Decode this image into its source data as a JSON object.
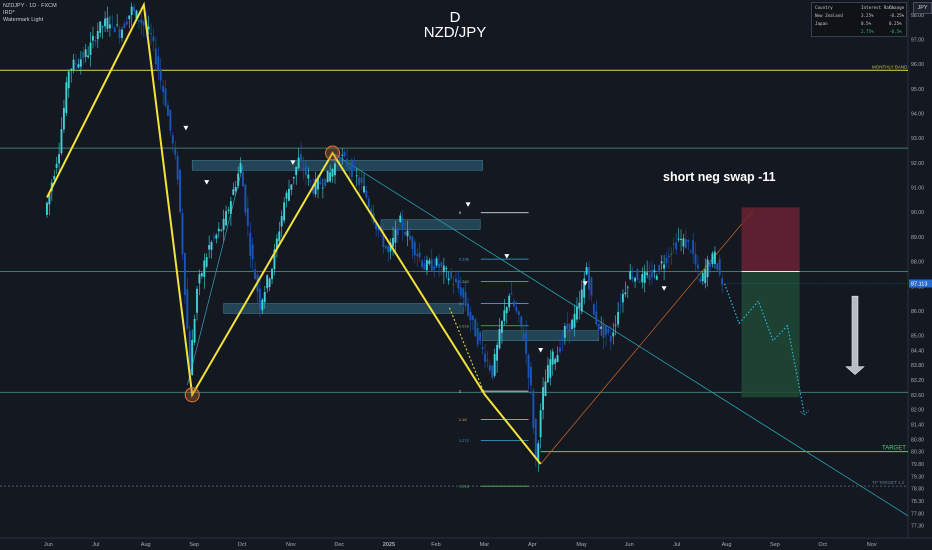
{
  "header": {
    "symbol_line": "NZDJPY · 1D · FXCM",
    "indicator": "IRD*",
    "watermark": "Watermark Light"
  },
  "title": {
    "interval": "D",
    "symbol": "NZD/JPY"
  },
  "annotation": "short neg swap -11",
  "currency_badge": "JPY",
  "rate_table": {
    "headers": [
      "Country",
      "Interest Rate",
      "Change"
    ],
    "rows": [
      [
        "New Zealand",
        "3.25%",
        "-0.25%"
      ],
      [
        "Japan",
        "0.5%",
        "0.25%"
      ],
      [
        "",
        "2.75%",
        "-0.5%"
      ]
    ],
    "row_colors": [
      "#c7cad1",
      "#c7cad1",
      "#35c06f"
    ]
  },
  "colors": {
    "background": "#141821",
    "candle_up": "#3fd0d6",
    "candle_down": "#1a55b8",
    "zigzag": "#f2e23a",
    "target": "#4fd07a",
    "monthly_band": "#c9c23a",
    "price_label": "#2a6bd1",
    "stop_zone": "#6a2233",
    "profit_zone": "#1e4a34",
    "projection": "#2ab8e0"
  },
  "chart_data": {
    "type": "candlestick",
    "symbol": "NZDJPY",
    "timeframe": "1D",
    "y_ticks": [
      "98.00",
      "97.00",
      "96.00",
      "95.00",
      "94.00",
      "93.00",
      "92.00",
      "91.00",
      "90.00",
      "89.00",
      "88.00",
      "87.00",
      "86.00",
      "85.00",
      "84.40",
      "83.80",
      "83.20",
      "82.60",
      "82.00",
      "81.40",
      "80.80",
      "80.30",
      "79.80",
      "79.30",
      "78.80",
      "78.30",
      "77.80",
      "77.30"
    ],
    "ylim": [
      76.8,
      98.6
    ],
    "x_ticks": [
      "Jun",
      "Jul",
      "Aug",
      "Sep",
      "Oct",
      "Nov",
      "Dec",
      "2025",
      "Feb",
      "Mar",
      "Apr",
      "May",
      "Jun",
      "Jul",
      "Aug",
      "Sep",
      "Oct",
      "Nov"
    ],
    "last_price": "87.113",
    "price_path": [
      [
        0,
        89.9
      ],
      [
        0.3,
        92.6
      ],
      [
        0.5,
        95.8
      ],
      [
        0.9,
        96.5
      ],
      [
        1.1,
        97.4
      ],
      [
        1.35,
        97.8
      ],
      [
        1.55,
        97.3
      ],
      [
        1.8,
        98.2
      ],
      [
        2.05,
        97.6
      ],
      [
        2.2,
        97.1
      ],
      [
        2.5,
        94.5
      ],
      [
        2.75,
        91.5
      ],
      [
        2.9,
        86.9
      ],
      [
        3.0,
        83.6
      ],
      [
        3.15,
        86.9
      ],
      [
        3.4,
        88.6
      ],
      [
        3.7,
        89.5
      ],
      [
        4.05,
        91.9
      ],
      [
        4.25,
        88.5
      ],
      [
        4.45,
        86.3
      ],
      [
        4.7,
        87.8
      ],
      [
        4.95,
        90.4
      ],
      [
        5.25,
        92.1
      ],
      [
        5.55,
        91.0
      ],
      [
        5.85,
        91.4
      ],
      [
        6.1,
        92.3
      ],
      [
        6.35,
        91.7
      ],
      [
        6.6,
        90.9
      ],
      [
        6.85,
        89.5
      ],
      [
        7.1,
        88.3
      ],
      [
        7.35,
        89.6
      ],
      [
        7.6,
        88.7
      ],
      [
        7.85,
        87.8
      ],
      [
        8.1,
        87.9
      ],
      [
        8.35,
        87.4
      ],
      [
        8.6,
        86.8
      ],
      [
        8.85,
        85.4
      ],
      [
        9.05,
        84.4
      ],
      [
        9.25,
        83.5
      ],
      [
        9.45,
        85.5
      ],
      [
        9.6,
        86.7
      ],
      [
        9.75,
        85.9
      ],
      [
        9.9,
        85.0
      ],
      [
        10.05,
        82.8
      ],
      [
        10.15,
        80.0
      ],
      [
        10.3,
        82.7
      ],
      [
        10.45,
        84.0
      ],
      [
        10.6,
        84.3
      ],
      [
        10.75,
        85.2
      ],
      [
        10.9,
        85.5
      ],
      [
        11.05,
        86.2
      ],
      [
        11.2,
        87.8
      ],
      [
        11.35,
        85.8
      ],
      [
        11.5,
        85.2
      ],
      [
        11.7,
        84.9
      ],
      [
        11.9,
        86.4
      ],
      [
        12.1,
        87.5
      ],
      [
        12.35,
        87.3
      ],
      [
        12.6,
        87.5
      ],
      [
        12.85,
        88.2
      ],
      [
        13.1,
        88.9
      ],
      [
        13.35,
        88.6
      ],
      [
        13.55,
        87.1
      ],
      [
        13.7,
        87.9
      ],
      [
        13.85,
        88.2
      ],
      [
        14.0,
        87.1
      ]
    ],
    "zigzag": [
      [
        0,
        90.6
      ],
      [
        2.0,
        98.4
      ],
      [
        3.0,
        82.6
      ],
      [
        5.9,
        92.4
      ],
      [
        9.05,
        82.6
      ],
      [
        10.2,
        79.8
      ]
    ],
    "levels": [
      {
        "kind": "monthly_band",
        "price": 95.75,
        "label": "MONTHLY BAND"
      },
      {
        "kind": "line",
        "price": 92.6
      },
      {
        "kind": "line",
        "price": 87.6
      },
      {
        "kind": "line",
        "price": 82.7
      },
      {
        "kind": "line",
        "price": 78.9,
        "label": "TP TARGET 1.2"
      },
      {
        "kind": "target",
        "price": 80.3,
        "label": "TARGET"
      }
    ],
    "fib": [
      {
        "label": "0",
        "price": 89.98
      },
      {
        "label": "0.236",
        "price": 88.1
      },
      {
        "label": "0.382",
        "price": 87.2
      },
      {
        "label": "0.5",
        "price": 86.3
      },
      {
        "label": "0.618",
        "price": 85.4
      },
      {
        "label": "1",
        "price": 82.75
      },
      {
        "label": "1.18",
        "price": 81.6
      },
      {
        "label": "1.272",
        "price": 80.75
      },
      {
        "label": "1.618",
        "price": 78.9
      }
    ],
    "zones": [
      {
        "name": "supply-1",
        "from": 3.0,
        "to": 9.0,
        "low": 91.7,
        "high": 92.1
      },
      {
        "name": "supply-2",
        "from": 6.9,
        "to": 8.95,
        "low": 89.3,
        "high": 89.7
      },
      {
        "name": "demand-1",
        "from": 3.65,
        "to": 8.6,
        "low": 85.9,
        "high": 86.3
      },
      {
        "name": "demand-2",
        "from": 9.0,
        "to": 11.4,
        "low": 84.8,
        "high": 85.2
      }
    ],
    "position": {
      "side": "short",
      "entry": 87.6,
      "stop": 90.2,
      "target": 82.5
    },
    "projection": [
      [
        14.0,
        87.1
      ],
      [
        14.3,
        85.5
      ],
      [
        14.7,
        86.4
      ],
      [
        15.0,
        84.8
      ],
      [
        15.3,
        85.4
      ],
      [
        15.65,
        81.8
      ]
    ]
  }
}
